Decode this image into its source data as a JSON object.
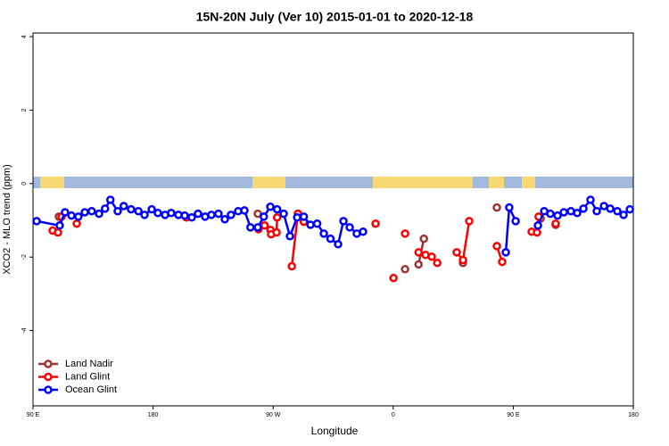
{
  "chart_data": {
    "type": "line",
    "title": "15N-20N July (Ver 10)   2015-01-01 to 2020-12-18",
    "x_label": "Longitude",
    "y_label": "XCO2 - MLO trend (ppm)",
    "xlim": [
      90,
      540
    ],
    "ylim": [
      -6.05,
      4.1
    ],
    "xticks": [
      {
        "value": 90,
        "label": "90 E"
      },
      180,
      {
        "value": 270,
        "label": "90 W"
      },
      {
        "value": 360,
        "label": "0"
      },
      {
        "value": 450,
        "label": "90 E"
      },
      {
        "value": 540,
        "label": "180"
      }
    ],
    "yticks": [
      -4,
      -2,
      0,
      2,
      4
    ],
    "legend": "bottom-left",
    "series": [
      {
        "name": "Land Nadir",
        "color": "#a03232",
        "x": [
          109.4,
          null,
          258.5,
          null,
          288.6,
          null,
          368.9,
          null,
          379,
          383,
          null,
          412.3,
          null,
          437.7,
          null,
          470.5,
          null,
          481.8
        ],
        "values": [
          -0.9,
          null,
          -0.82,
          null,
          -0.82,
          null,
          -2.33,
          null,
          -2.2,
          -1.5,
          null,
          -2.16,
          null,
          -0.65,
          null,
          -0.95,
          null,
          -1.12
        ]
      },
      {
        "name": "Land Glint",
        "color": "#ff0000",
        "x": [
          104.7,
          108.7,
          111.4,
          null,
          122.8,
          null,
          205,
          null,
          259,
          263.6,
          268,
          268.5,
          272.6,
          273,
          null,
          284,
          288.6,
          293,
          null,
          346.8,
          null,
          360.2,
          null,
          368.9,
          null,
          379,
          384.2,
          388.9,
          393,
          null,
          407.6,
          412.3,
          417,
          null,
          437.7,
          441.7,
          null,
          463.8,
          467.8,
          469,
          null,
          481.8
        ],
        "values": [
          -1.28,
          -1.33,
          -0.9,
          null,
          -1.09,
          null,
          -0.92,
          null,
          -1.24,
          -1.14,
          -1.26,
          -1.38,
          -1.33,
          -0.92,
          null,
          -2.25,
          -0.82,
          -1.04,
          null,
          -1.09,
          null,
          -2.57,
          null,
          -1.36,
          null,
          -1.87,
          -1.94,
          -1.99,
          -2.16,
          null,
          -1.87,
          -2.08,
          -1.02,
          null,
          -1.7,
          -2.13,
          null,
          -1.31,
          -1.33,
          -0.9,
          null,
          -1.09
        ]
      },
      {
        "name": "Ocean Glint",
        "color": "#0000ff",
        "x": [
          92.7,
          110,
          114,
          118.8,
          124,
          128.8,
          134,
          139.5,
          144,
          148,
          153.5,
          158,
          163.5,
          169,
          173.6,
          179,
          183.6,
          189,
          193.6,
          199,
          203.7,
          209,
          213.7,
          219,
          223.7,
          229,
          233.8,
          238.4,
          243.8,
          248.5,
          253,
          258.5,
          263,
          267.9,
          273,
          277.9,
          282.6,
          288,
          293,
          298,
          303,
          308,
          313,
          318.7,
          322.7,
          327.4,
          332.7,
          337.4,
          null,
          444.4,
          447,
          451.8,
          null,
          468.5,
          473.2,
          477.8,
          483.2,
          487.9,
          493.2,
          497.9,
          502.6,
          507.9,
          512.6,
          518,
          522.7,
          528,
          532.7,
          537.4
        ],
        "values": [
          -1.02,
          -1.14,
          -0.78,
          -0.87,
          -0.9,
          -0.78,
          -0.75,
          -0.82,
          -0.68,
          -0.44,
          -0.75,
          -0.61,
          -0.7,
          -0.75,
          -0.85,
          -0.7,
          -0.8,
          -0.85,
          -0.8,
          -0.85,
          -0.87,
          -0.92,
          -0.82,
          -0.9,
          -0.85,
          -0.82,
          -0.97,
          -0.85,
          -0.75,
          -0.73,
          -1.19,
          -1.19,
          -0.9,
          -0.63,
          -0.7,
          -0.82,
          -1.43,
          -0.92,
          -0.9,
          -1.12,
          -1.09,
          -1.36,
          -1.5,
          -1.65,
          -1.02,
          -1.19,
          -1.36,
          -1.31,
          null,
          -1.87,
          -0.65,
          -1.02,
          null,
          -1.14,
          -0.75,
          -0.82,
          -0.87,
          -0.78,
          -0.75,
          -0.8,
          -0.68,
          -0.44,
          -0.75,
          -0.61,
          -0.68,
          -0.75,
          -0.85,
          -0.7
        ]
      }
    ]
  }
}
